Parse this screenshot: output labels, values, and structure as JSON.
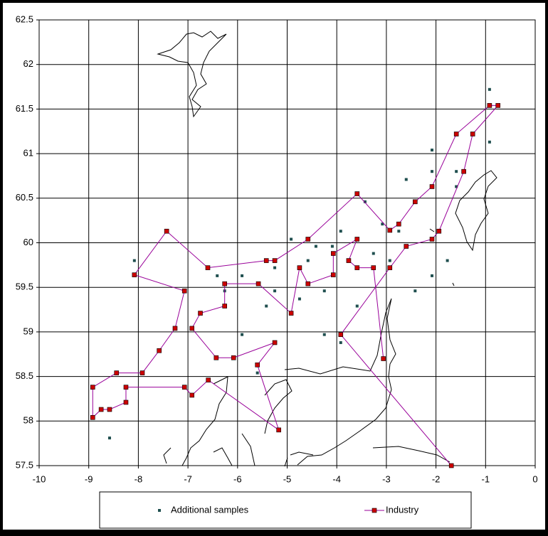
{
  "chart_data": {
    "type": "scatter",
    "xlim": [
      -10,
      0
    ],
    "ylim": [
      57.5,
      62.5
    ],
    "xticks": [
      -10,
      -9,
      -8,
      -7,
      -6,
      -5,
      -4,
      -3,
      -2,
      -1,
      0
    ],
    "yticks": [
      57.5,
      58,
      58.5,
      59,
      59.5,
      60,
      60.5,
      61,
      61.5,
      62,
      62.5
    ],
    "grid": true,
    "legend": "bottom",
    "series": [
      {
        "name": "Additional samples",
        "color": "#1f4f4f",
        "marker": "square",
        "line": false,
        "x": [
          -0.92,
          -0.92,
          -2.08,
          -2.08,
          -1.59,
          -1.59,
          -2.6,
          -3.43,
          -3.08,
          -2.75,
          -3.92,
          -4.92,
          -4.42,
          -4.09,
          -3.26,
          -2.93,
          -1.77,
          -2.08,
          -8.08,
          -4.58,
          -5.25,
          -6.41,
          -5.91,
          -6.26,
          -5.25,
          -4.25,
          -2.42,
          -4.75,
          -5.42,
          -3.59,
          -5.91,
          -4.25,
          -3.92,
          -5.6,
          -8.58
        ],
        "values": [
          61.72,
          61.13,
          61.04,
          60.8,
          60.8,
          60.63,
          60.71,
          60.46,
          60.21,
          60.13,
          60.13,
          60.04,
          59.96,
          59.96,
          59.88,
          59.8,
          59.8,
          59.63,
          59.8,
          59.8,
          59.72,
          59.63,
          59.63,
          59.46,
          59.46,
          59.46,
          59.46,
          59.37,
          59.29,
          59.29,
          58.97,
          58.97,
          58.88,
          58.54,
          57.81
        ]
      },
      {
        "name": "Industry",
        "color": "#cc0000",
        "line_color": "#990099",
        "marker": "square",
        "line": true,
        "x": [
          -1.69,
          -3.92,
          -2.93,
          -2.6,
          -2.08,
          -1.94,
          -1.44,
          -1.26,
          -0.75,
          -0.92,
          -1.59,
          -2.08,
          -2.42,
          -2.75,
          -2.93,
          -3.59,
          -4.58,
          -5.25,
          -5.42,
          -6.6,
          -7.43,
          -8.08,
          -7.07,
          -7.26,
          -7.58,
          -7.92,
          -8.44,
          -8.92,
          -8.92,
          -8.75,
          -8.58,
          -8.25,
          -8.25,
          -7.07,
          -6.92,
          -6.59,
          -5.17,
          -5.6,
          -5.25,
          -6.08,
          -6.43,
          -6.92,
          -6.75,
          -6.26,
          -6.26,
          -5.58,
          -4.92,
          -4.75,
          -4.58,
          -4.07,
          -4.07,
          -3.59,
          -3.76,
          -3.59,
          -3.26,
          -3.06
        ],
        "values": [
          57.5,
          58.97,
          59.72,
          59.96,
          60.04,
          60.13,
          60.8,
          61.22,
          61.54,
          61.54,
          61.22,
          60.63,
          60.46,
          60.21,
          60.14,
          60.55,
          60.04,
          59.8,
          59.8,
          59.72,
          60.13,
          59.64,
          59.46,
          59.04,
          58.79,
          58.54,
          58.54,
          58.38,
          58.04,
          58.13,
          58.13,
          58.21,
          58.38,
          58.38,
          58.29,
          58.46,
          57.9,
          58.63,
          58.88,
          58.71,
          58.71,
          59.04,
          59.21,
          59.29,
          59.54,
          59.54,
          59.21,
          59.72,
          59.54,
          59.64,
          59.88,
          60.04,
          59.8,
          59.72,
          59.72,
          58.7
        ]
      }
    ]
  }
}
